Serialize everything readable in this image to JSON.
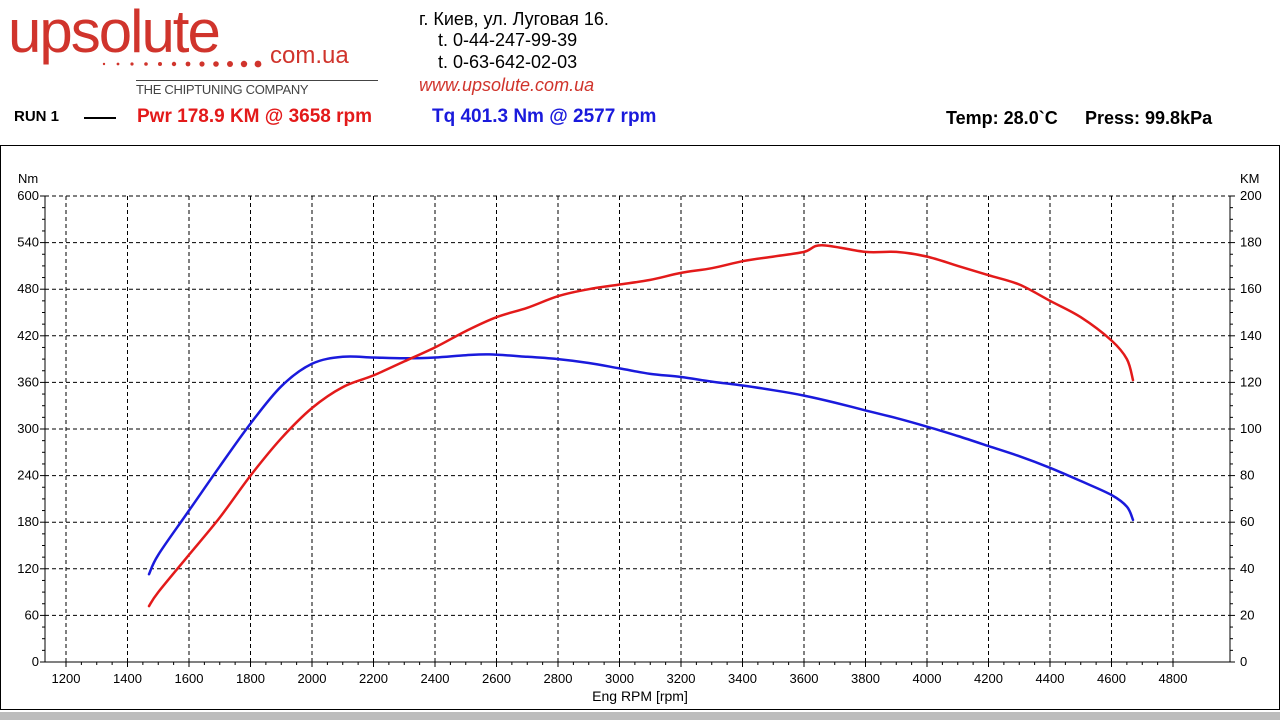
{
  "header": {
    "logo_text": "upsolute",
    "logo_domain": "com.ua",
    "logo_tagline": "THE CHIPTUNING COMPANY",
    "address": "г. Киев, ул. Луговая 16.",
    "phone1": "t. 0-44-247-99-39",
    "phone2": "t. 0-63-642-02-03",
    "website": "www.upsolute.com.ua",
    "run_label": "RUN 1",
    "pwr_info": "Pwr  178.9 KM @ 3658 rpm",
    "tq_info": "Tq 401.3 Nm @ 2577 rpm",
    "temp_info": "Temp: 28.0`C",
    "press_info": "Press: 99.8kPa"
  },
  "colors": {
    "brand": "#d0342c",
    "power": "#e31a1a",
    "torque": "#1a1adc"
  },
  "chart_data": {
    "type": "line",
    "xlabel": "Eng RPM [rpm]",
    "ylabel_left": "Nm",
    "ylabel_right": "KM",
    "xlim": [
      1200,
      4850
    ],
    "ylim_left": [
      0,
      600
    ],
    "ylim_right": [
      0,
      200
    ],
    "x_ticks": [
      1200,
      1400,
      1600,
      1800,
      2000,
      2200,
      2400,
      2600,
      2800,
      3000,
      3200,
      3400,
      3600,
      3800,
      4000,
      4200,
      4400,
      4600,
      4800
    ],
    "y_ticks_left": [
      0,
      60,
      120,
      180,
      240,
      300,
      360,
      420,
      480,
      540,
      600
    ],
    "y_ticks_right": [
      0,
      20,
      40,
      60,
      80,
      100,
      120,
      140,
      160,
      180,
      200
    ],
    "grid": true,
    "series": [
      {
        "name": "Tq",
        "axis": "left",
        "color": "#1a1adc",
        "x": [
          1470,
          1500,
          1600,
          1700,
          1800,
          1900,
          2000,
          2100,
          2200,
          2300,
          2400,
          2500,
          2577,
          2700,
          2800,
          2900,
          3000,
          3100,
          3200,
          3300,
          3400,
          3500,
          3600,
          3700,
          3800,
          3900,
          4000,
          4100,
          4200,
          4300,
          4400,
          4500,
          4600,
          4650,
          4670
        ],
        "y": [
          113,
          138,
          195,
          252,
          307,
          355,
          384,
          393,
          392,
          391,
          392,
          395,
          396,
          393,
          390,
          385,
          378,
          371,
          367,
          361,
          356,
          350,
          343,
          334,
          324,
          314,
          303,
          291,
          278,
          265,
          250,
          233,
          215,
          200,
          183
        ]
      },
      {
        "name": "Pwr",
        "axis": "right",
        "color": "#e31a1a",
        "x": [
          1470,
          1500,
          1600,
          1700,
          1800,
          1900,
          2000,
          2100,
          2200,
          2300,
          2400,
          2500,
          2600,
          2700,
          2800,
          2900,
          3000,
          3100,
          3200,
          3300,
          3400,
          3500,
          3600,
          3658,
          3800,
          3900,
          4000,
          4100,
          4200,
          4300,
          4400,
          4500,
          4600,
          4650,
          4670
        ],
        "y": [
          24,
          30,
          46,
          62,
          80,
          96,
          109,
          118,
          123,
          129,
          135,
          142,
          148,
          152,
          157,
          160,
          162,
          164,
          167,
          169,
          172,
          174,
          176,
          178.9,
          176,
          176,
          174,
          170,
          166,
          162,
          155,
          148,
          138,
          130,
          121
        ]
      }
    ]
  }
}
